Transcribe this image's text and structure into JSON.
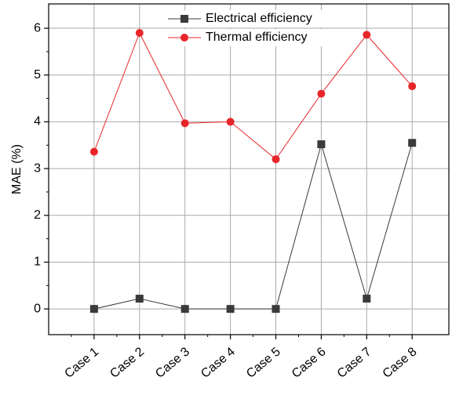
{
  "chart_data": {
    "type": "line",
    "y_label": "MAE (%)",
    "categories": [
      "Case 1",
      "Case 2",
      "Case 3",
      "Case 4",
      "Case 5",
      "Case 6",
      "Case 7",
      "Case 8"
    ],
    "series": [
      {
        "name": "Electrical efficiency",
        "color": "#3a3a3a",
        "marker": "square",
        "values": [
          0,
          0.22,
          0,
          0,
          0,
          3.52,
          0.22,
          3.55
        ]
      },
      {
        "name": "Thermal efficiency",
        "color": "#e8262a",
        "marker": "circle",
        "values": [
          3.36,
          5.9,
          3.97,
          4.0,
          3.2,
          4.6,
          5.86,
          4.76
        ]
      }
    ],
    "ylim": [
      -0.55,
      6.52
    ],
    "yticks": [
      0,
      1,
      2,
      3,
      4,
      5,
      6
    ],
    "grid": true,
    "legend": "top"
  }
}
